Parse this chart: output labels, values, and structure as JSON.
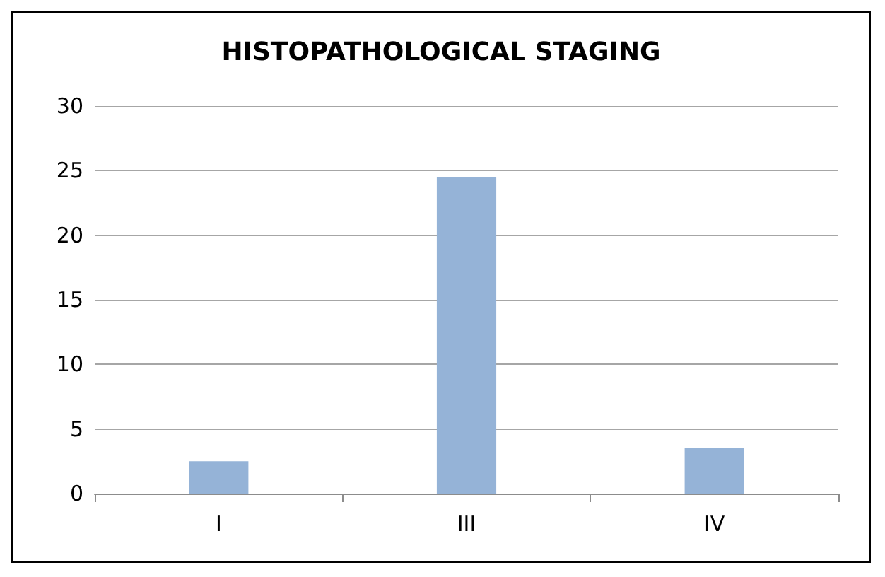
{
  "chart_data": {
    "type": "bar",
    "title": "HISTOPATHOLOGICAL STAGING",
    "categories": [
      "I",
      "III",
      "IV"
    ],
    "values": [
      2.5,
      24.5,
      3.5
    ],
    "color": "#95b3d7",
    "ylim": [
      0,
      30
    ],
    "yticks": [
      0,
      5,
      10,
      15,
      20,
      25,
      30
    ],
    "grid": "y"
  }
}
